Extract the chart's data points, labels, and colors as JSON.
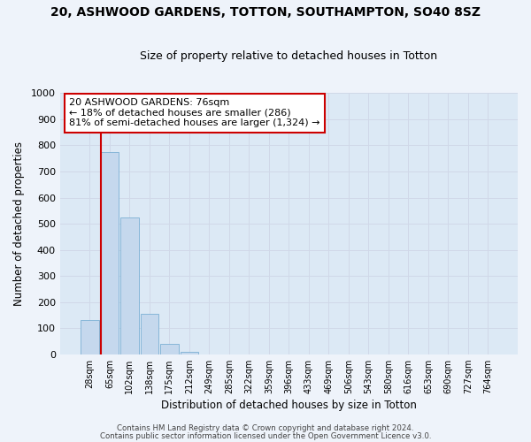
{
  "title": "20, ASHWOOD GARDENS, TOTTON, SOUTHAMPTON, SO40 8SZ",
  "subtitle": "Size of property relative to detached houses in Totton",
  "xlabel": "Distribution of detached houses by size in Totton",
  "ylabel": "Number of detached properties",
  "bar_labels": [
    "28sqm",
    "65sqm",
    "102sqm",
    "138sqm",
    "175sqm",
    "212sqm",
    "249sqm",
    "285sqm",
    "322sqm",
    "359sqm",
    "396sqm",
    "433sqm",
    "469sqm",
    "506sqm",
    "543sqm",
    "580sqm",
    "616sqm",
    "653sqm",
    "690sqm",
    "727sqm",
    "764sqm"
  ],
  "bar_values": [
    130,
    775,
    525,
    155,
    40,
    8,
    0,
    0,
    0,
    0,
    0,
    0,
    0,
    0,
    0,
    0,
    0,
    0,
    0,
    0,
    0
  ],
  "ylim": [
    0,
    1000
  ],
  "yticks": [
    0,
    100,
    200,
    300,
    400,
    500,
    600,
    700,
    800,
    900,
    1000
  ],
  "bar_color": "#c5d8ed",
  "bar_edge_color": "#7aafd4",
  "grid_color": "#d0d8e8",
  "plot_bg_color": "#dce9f5",
  "fig_bg_color": "#eef3fa",
  "vline_color": "#cc0000",
  "vline_x_index": 1,
  "annotation_text": "20 ASHWOOD GARDENS: 76sqm\n← 18% of detached houses are smaller (286)\n81% of semi-detached houses are larger (1,324) →",
  "annotation_box_facecolor": "#ffffff",
  "annotation_box_edgecolor": "#cc0000",
  "footer1": "Contains HM Land Registry data © Crown copyright and database right 2024.",
  "footer2": "Contains public sector information licensed under the Open Government Licence v3.0."
}
